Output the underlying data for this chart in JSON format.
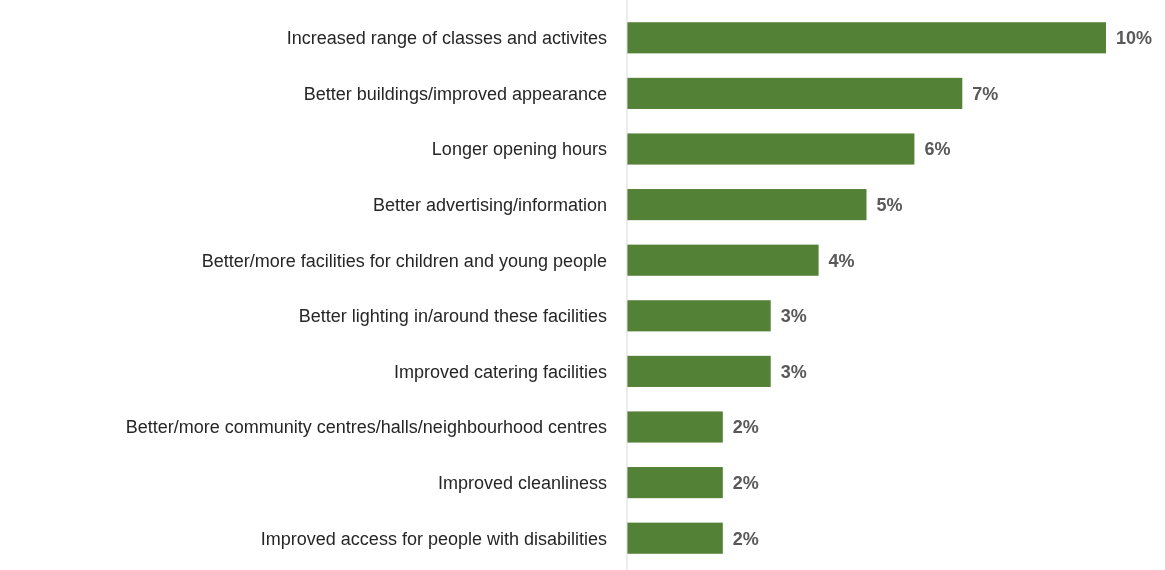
{
  "chart_data": {
    "type": "bar",
    "orientation": "horizontal",
    "categories": [
      "Increased range of classes and activites",
      "Better buildings/improved appearance",
      "Longer opening hours",
      "Better advertising/information",
      "Better/more facilities for children and young people",
      "Better lighting in/around these facilities",
      "Improved catering facilities",
      "Better/more community centres/halls/neighbourhood centres",
      "Improved cleanliness",
      "Improved access for people with disabilities"
    ],
    "values": [
      10,
      7,
      6,
      5,
      4,
      3,
      3,
      2,
      2,
      2
    ],
    "value_labels": [
      "10%",
      "7%",
      "6%",
      "5%",
      "4%",
      "3%",
      "3%",
      "2%",
      "2%",
      "2%"
    ],
    "color": "#538135"
  }
}
